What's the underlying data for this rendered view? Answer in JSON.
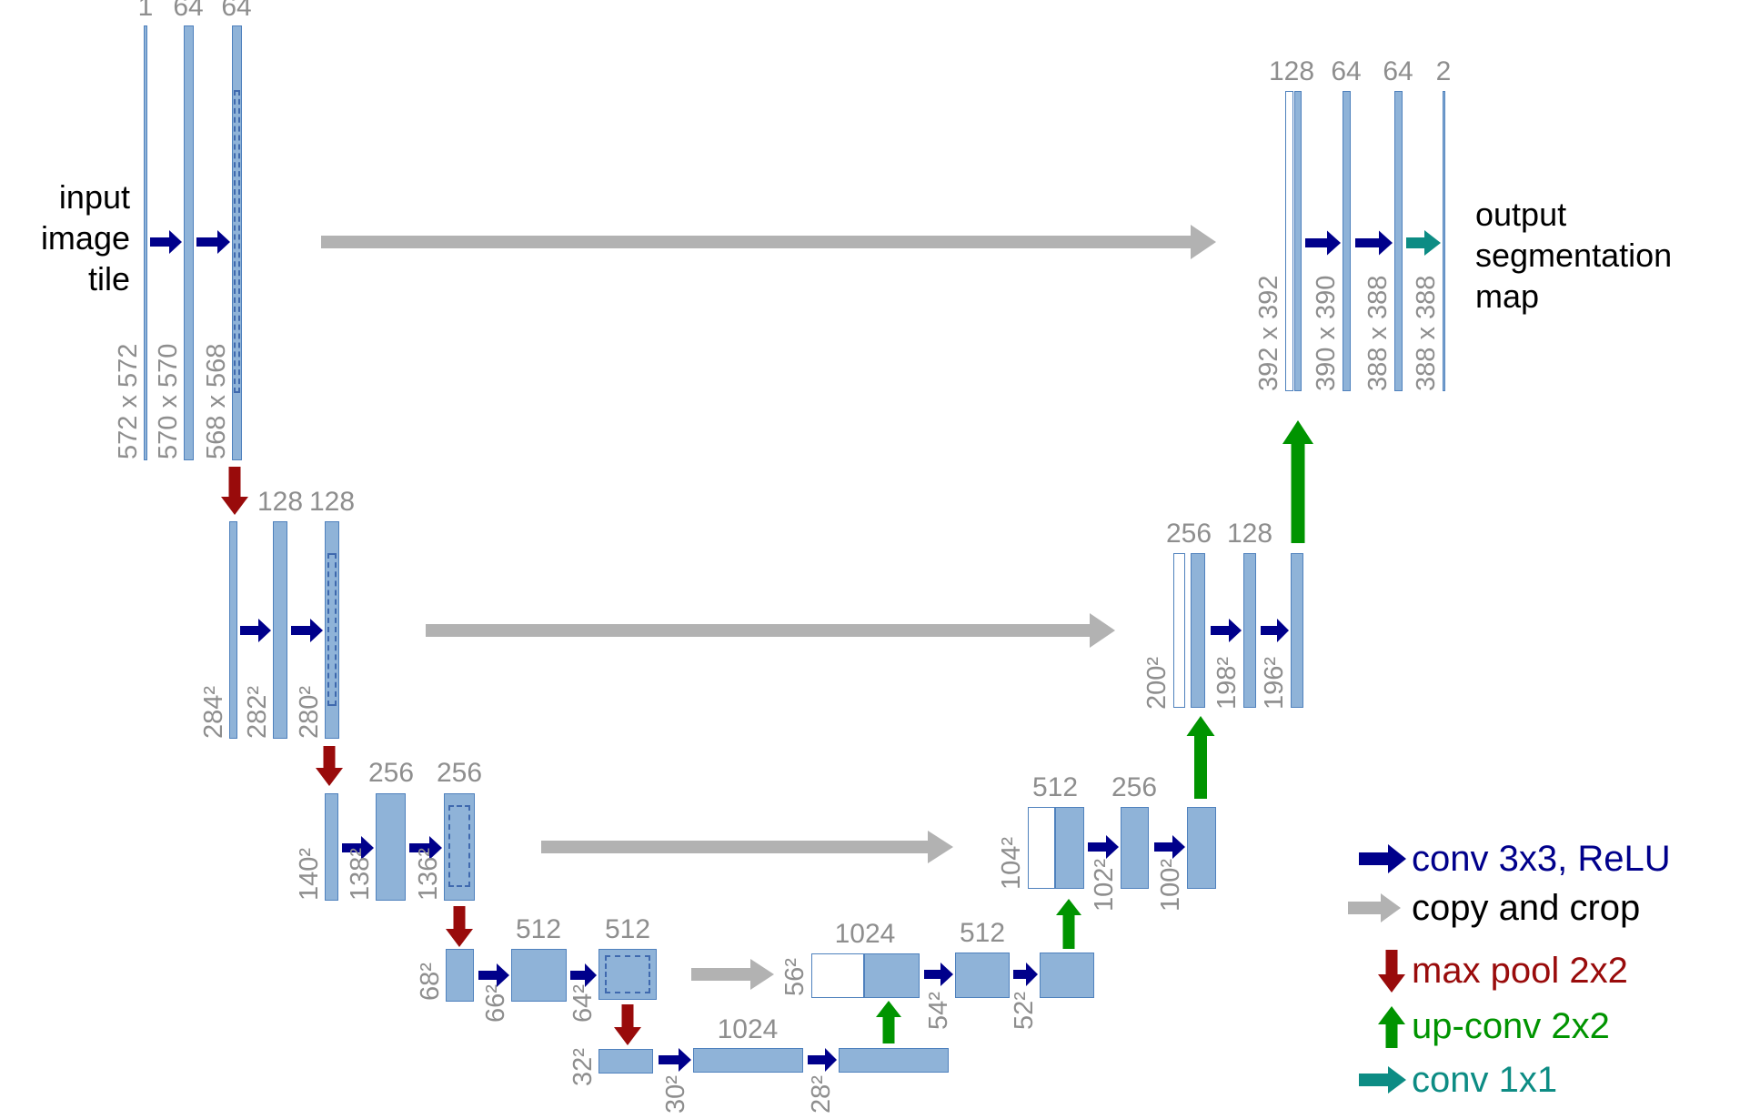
{
  "figure": {
    "name": "u-net architecture diagram",
    "input_caption_lines": [
      "input",
      "image",
      "tile"
    ],
    "output_caption_lines": [
      "output",
      "segmentation",
      "map"
    ]
  },
  "stages": {
    "enc1": {
      "channel_labels": [
        "1",
        "64",
        "64"
      ],
      "size_labels": [
        "572 x 572",
        "570 x 570",
        "568 x 568"
      ]
    },
    "enc2": {
      "channel_labels": [
        "128",
        "128"
      ],
      "size_labels": [
        "284²",
        "282²",
        "280²"
      ]
    },
    "enc3": {
      "channel_labels": [
        "256",
        "256"
      ],
      "size_labels": [
        "140²",
        "138²",
        "136²"
      ]
    },
    "enc4": {
      "channel_labels": [
        "512",
        "512"
      ],
      "size_labels": [
        "68²",
        "66²",
        "64²"
      ]
    },
    "bottleneck": {
      "channel_labels": [
        "1024"
      ],
      "size_labels": [
        "32²",
        "30²",
        "28²"
      ]
    },
    "dec4": {
      "channel_labels": [
        "1024",
        "512"
      ],
      "size_labels": [
        "56²",
        "54²",
        "52²"
      ]
    },
    "dec3": {
      "channel_labels": [
        "512",
        "256"
      ],
      "size_labels": [
        "104²",
        "102²",
        "100²"
      ]
    },
    "dec2": {
      "channel_labels": [
        "256",
        "128"
      ],
      "size_labels": [
        "200²",
        "198²",
        "196²"
      ]
    },
    "dec1": {
      "channel_labels": [
        "128",
        "64",
        "64",
        "2"
      ],
      "size_labels": [
        "392 x 392",
        "390 x 390",
        "388 x 388",
        "388 x 388"
      ]
    }
  },
  "legend": [
    {
      "label": "conv 3x3, ReLU",
      "arrow": "right",
      "arrow_color": "#00008b",
      "text_color": "#00008b"
    },
    {
      "label": "copy and crop",
      "arrow": "right",
      "arrow_color": "#b2b2b2",
      "text_color": "#000000"
    },
    {
      "label": "max pool 2x2",
      "arrow": "down",
      "arrow_color": "#990b0b",
      "text_color": "#990b0b"
    },
    {
      "label": "up-conv 2x2",
      "arrow": "up",
      "arrow_color": "#009400",
      "text_color": "#009400"
    },
    {
      "label": "conv 1x1",
      "arrow": "right",
      "arrow_color": "#0d8c84",
      "text_color": "#0d8c84"
    }
  ],
  "colors": {
    "feature_map_fill": "#8fb3d8",
    "feature_map_border": "#4f81bd",
    "crop_dash": "#3f69ae",
    "conv_arrow": "#00008b",
    "copy_arrow": "#b2b2b2",
    "maxpool_arrow": "#990b0b",
    "upconv_arrow": "#009400",
    "conv1x1_arrow": "#0d8c84",
    "label_gray": "#8e8e8e"
  }
}
